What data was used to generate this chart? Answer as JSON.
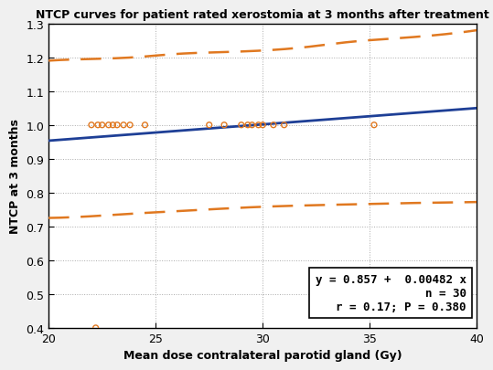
{
  "title": "NTCP curves for patient rated xerostomia at 3 months after treatment",
  "xlabel": "Mean dose contralateral parotid gland (Gy)",
  "ylabel": "NTCP at 3 months",
  "xlim": [
    20,
    40
  ],
  "ylim": [
    0.4,
    1.3
  ],
  "xticks": [
    20,
    25,
    30,
    35,
    40
  ],
  "yticks": [
    0.4,
    0.5,
    0.6,
    0.7,
    0.8,
    0.9,
    1.0,
    1.1,
    1.2,
    1.3
  ],
  "intercept": 0.857,
  "slope": 0.00482,
  "annotation_line1": "y = 0.857 +  0.00482 x",
  "annotation_line2": "n = 30",
  "annotation_line3": "r = 0.17; P = 0.380",
  "scatter_x": [
    22.0,
    22.3,
    22.5,
    22.8,
    23.0,
    23.2,
    23.5,
    23.8,
    24.5,
    27.5,
    28.2,
    29.0,
    29.3,
    29.5,
    29.8,
    30.0,
    30.5,
    31.0,
    35.2,
    22.2
  ],
  "scatter_y": [
    1.0,
    1.0,
    1.0,
    1.0,
    1.0,
    1.0,
    1.0,
    1.0,
    1.0,
    1.0,
    1.0,
    1.0,
    1.0,
    1.0,
    1.0,
    1.0,
    1.0,
    1.0,
    1.0,
    0.4
  ],
  "line_color": "#1e3f96",
  "ci_color": "#e07820",
  "scatter_color": "#e07820",
  "background_color": "#f0f0f0",
  "plot_bg_color": "#ffffff",
  "ci_upper_x": [
    20,
    22,
    24,
    26,
    28,
    30,
    32,
    34,
    36,
    38,
    40
  ],
  "ci_upper_y": [
    1.19,
    1.195,
    1.2,
    1.21,
    1.215,
    1.22,
    1.23,
    1.245,
    1.255,
    1.265,
    1.28
  ],
  "ci_lower_x": [
    20,
    22,
    24,
    26,
    28,
    30,
    32,
    34,
    36,
    38,
    40
  ],
  "ci_lower_y": [
    0.725,
    0.73,
    0.738,
    0.745,
    0.752,
    0.758,
    0.762,
    0.765,
    0.768,
    0.77,
    0.772
  ],
  "title_fontsize": 9,
  "label_fontsize": 9,
  "tick_fontsize": 9,
  "annot_fontsize": 9
}
